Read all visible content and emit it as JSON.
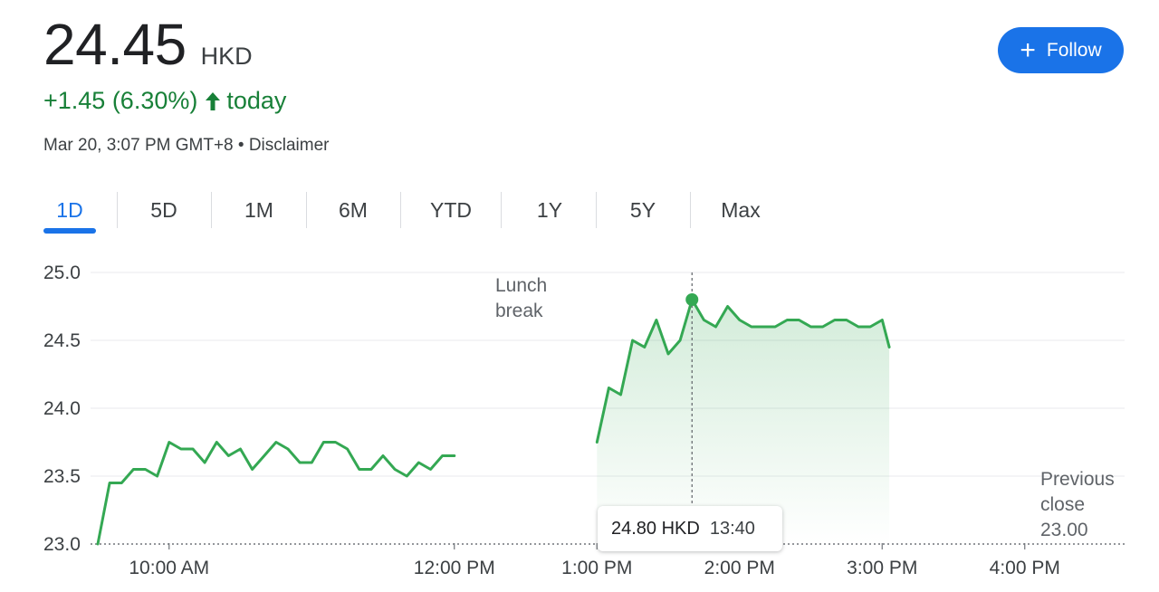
{
  "quote": {
    "price": "24.45",
    "currency": "HKD",
    "change": "+1.45 (6.30%)",
    "change_suffix": "today",
    "timestamp": "Mar 20, 3:07 PM GMT+8 • Disclaimer",
    "trend_color": "#188038"
  },
  "follow_button": {
    "icon": "plus-icon",
    "label": "Follow",
    "color": "#1a73e8"
  },
  "tabs": [
    {
      "label": "1D",
      "active": true
    },
    {
      "label": "5D",
      "active": false
    },
    {
      "label": "1M",
      "active": false
    },
    {
      "label": "6M",
      "active": false
    },
    {
      "label": "YTD",
      "active": false
    },
    {
      "label": "1Y",
      "active": false
    },
    {
      "label": "5Y",
      "active": false
    },
    {
      "label": "Max",
      "active": false
    }
  ],
  "annotations": {
    "lunch_line1": "Lunch",
    "lunch_line2": "break",
    "prev_line1": "Previous",
    "prev_line2": "close",
    "prev_value": "23.00"
  },
  "tooltip": {
    "price": "24.80 HKD",
    "time": "13:40"
  },
  "chart_data": {
    "type": "line",
    "y_ticks": [
      "25.0",
      "24.5",
      "24.0",
      "23.5",
      "23.0"
    ],
    "x_ticks": [
      "10:00 AM",
      "12:00 PM",
      "1:00 PM",
      "2:00 PM",
      "3:00 PM",
      "4:00 PM"
    ],
    "ylim": [
      23.0,
      25.0
    ],
    "previous_close": 23.0,
    "grid": true,
    "line_color": "#34a853",
    "series": [
      {
        "segment": "morning",
        "points": [
          [
            "09:30",
            23.0
          ],
          [
            "09:35",
            23.45
          ],
          [
            "09:40",
            23.45
          ],
          [
            "09:45",
            23.55
          ],
          [
            "09:50",
            23.55
          ],
          [
            "09:55",
            23.5
          ],
          [
            "10:00",
            23.75
          ],
          [
            "10:05",
            23.7
          ],
          [
            "10:10",
            23.7
          ],
          [
            "10:15",
            23.6
          ],
          [
            "10:20",
            23.75
          ],
          [
            "10:25",
            23.65
          ],
          [
            "10:30",
            23.7
          ],
          [
            "10:35",
            23.55
          ],
          [
            "10:40",
            23.65
          ],
          [
            "10:45",
            23.75
          ],
          [
            "10:50",
            23.7
          ],
          [
            "10:55",
            23.6
          ],
          [
            "11:00",
            23.6
          ],
          [
            "11:05",
            23.75
          ],
          [
            "11:10",
            23.75
          ],
          [
            "11:15",
            23.7
          ],
          [
            "11:20",
            23.55
          ],
          [
            "11:25",
            23.55
          ],
          [
            "11:30",
            23.65
          ],
          [
            "11:35",
            23.55
          ],
          [
            "11:40",
            23.5
          ],
          [
            "11:45",
            23.6
          ],
          [
            "11:50",
            23.55
          ],
          [
            "11:55",
            23.65
          ],
          [
            "12:00",
            23.65
          ]
        ]
      },
      {
        "segment": "afternoon",
        "points": [
          [
            "13:00",
            23.75
          ],
          [
            "13:05",
            24.15
          ],
          [
            "13:10",
            24.1
          ],
          [
            "13:15",
            24.5
          ],
          [
            "13:20",
            24.45
          ],
          [
            "13:25",
            24.65
          ],
          [
            "13:30",
            24.4
          ],
          [
            "13:35",
            24.5
          ],
          [
            "13:40",
            24.8
          ],
          [
            "13:45",
            24.65
          ],
          [
            "13:50",
            24.6
          ],
          [
            "13:55",
            24.75
          ],
          [
            "14:00",
            24.65
          ],
          [
            "14:05",
            24.6
          ],
          [
            "14:10",
            24.6
          ],
          [
            "14:15",
            24.6
          ],
          [
            "14:20",
            24.65
          ],
          [
            "14:25",
            24.65
          ],
          [
            "14:30",
            24.6
          ],
          [
            "14:35",
            24.6
          ],
          [
            "14:40",
            24.65
          ],
          [
            "14:45",
            24.65
          ],
          [
            "14:50",
            24.6
          ],
          [
            "14:55",
            24.6
          ],
          [
            "15:00",
            24.65
          ],
          [
            "15:03",
            24.45
          ]
        ]
      }
    ],
    "highlight": {
      "time": "13:40",
      "value": 24.8
    }
  }
}
